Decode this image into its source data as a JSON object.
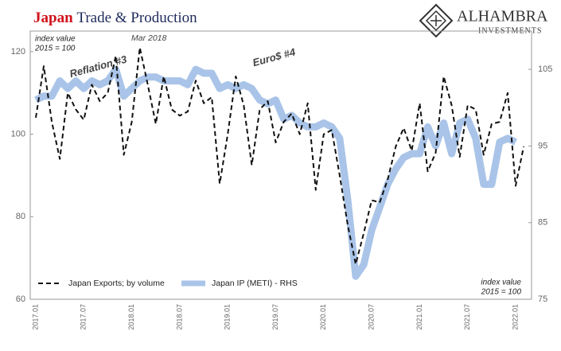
{
  "chart_data": {
    "type": "line",
    "title_parts": [
      "Japan",
      "Trade & Production"
    ],
    "title_colors": [
      "#d0121b",
      "#1f2b5a"
    ],
    "logo": [
      "ALHAMBRA",
      "INVESTMENTS"
    ],
    "annotations": [
      "Mar 2018",
      "Reflation #3",
      "Euro$ #4"
    ],
    "annotation_colors": [
      "#222222",
      "#e0161e",
      "#e0161e"
    ],
    "yaxis_note": [
      "index value",
      "2015 = 100"
    ],
    "y2axis_note": [
      "index value",
      "2015 = 100"
    ],
    "categories": [
      "2017.01",
      null,
      null,
      null,
      null,
      null,
      "2017.07",
      null,
      null,
      null,
      null,
      null,
      "2018.01",
      null,
      null,
      null,
      null,
      null,
      "2018.07",
      null,
      null,
      null,
      null,
      null,
      "2019.01",
      null,
      null,
      null,
      null,
      null,
      "2019.07",
      null,
      null,
      null,
      null,
      null,
      "2020.01",
      null,
      null,
      null,
      null,
      null,
      "2020.07",
      null,
      null,
      null,
      null,
      null,
      "2021.01",
      null,
      null,
      null,
      null,
      null,
      "2021.07",
      null,
      null,
      null,
      null,
      null,
      "2022.01",
      null
    ],
    "series": [
      {
        "name": "Japan Exports; by volume",
        "color": "#111111",
        "dashed": true,
        "values": [
          104,
          116.5,
          103,
          94,
          110,
          106,
          103.5,
          112,
          108,
          110,
          119,
          95,
          103,
          121,
          112,
          102.5,
          114,
          106,
          104.5,
          105.5,
          113,
          107.5,
          109,
          88,
          100,
          114,
          107,
          92.5,
          106,
          108,
          98,
          103,
          105,
          100,
          107.5,
          86.5,
          100,
          101,
          90,
          78,
          68.5,
          76,
          84,
          83.5,
          89,
          97,
          101.5,
          96,
          107.5,
          91,
          95.5,
          114,
          107,
          94.5,
          107,
          106,
          95,
          102.5,
          103,
          110,
          87.5,
          97
        ]
      },
      {
        "name": "Japan IP (METI) - RHS",
        "color": "#a9c4e8",
        "axis": "y2",
        "values": [
          101,
          101.5,
          101.5,
          103.5,
          102.5,
          103.5,
          102.5,
          103.5,
          103,
          103.5,
          105,
          101.5,
          102.5,
          103.5,
          104,
          104,
          103.5,
          103.5,
          103.5,
          103,
          105,
          104.5,
          104.5,
          102.5,
          103,
          102.5,
          103,
          102.5,
          101,
          100.5,
          101,
          98.5,
          99,
          98,
          97.5,
          97.5,
          98,
          97.5,
          96,
          88,
          78,
          79.5,
          84,
          87,
          90,
          92,
          93.5,
          94,
          94,
          97.5,
          95,
          98,
          94,
          98,
          98.5,
          96,
          90,
          90,
          95.5,
          96,
          95.5,
          null
        ]
      }
    ],
    "ylim": [
      60,
      125
    ],
    "yticks": [
      60,
      80,
      100,
      120
    ],
    "y2lim": [
      75,
      110
    ],
    "y2ticks": [
      75,
      85,
      95,
      105
    ],
    "legend": "lower left",
    "grid": false
  }
}
